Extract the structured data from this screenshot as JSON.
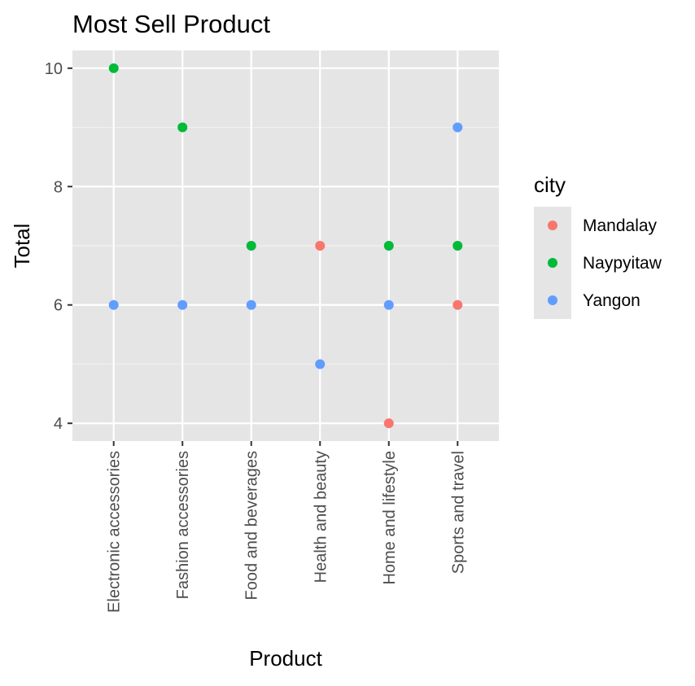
{
  "chart_data": {
    "type": "scatter",
    "title": "Most Sell Product",
    "xlabel": "Product",
    "ylabel": "Total",
    "categories": [
      "Electronic accessories",
      "Fashion accessories",
      "Food and beverages",
      "Health and beauty",
      "Home and lifestyle",
      "Sports and travel"
    ],
    "ylim": [
      3.7,
      10.3
    ],
    "yticks": [
      4,
      6,
      8,
      10
    ],
    "y_minor_ticks": [
      5,
      7,
      9
    ],
    "grid": true,
    "legend": {
      "title": "city",
      "position": "right"
    },
    "series": [
      {
        "name": "Mandalay",
        "color": "#F8766D",
        "points": [
          {
            "x": "Health and beauty",
            "y": 7
          },
          {
            "x": "Home and lifestyle",
            "y": 4
          },
          {
            "x": "Sports and travel",
            "y": 6
          }
        ]
      },
      {
        "name": "Naypyitaw",
        "color": "#00BA38",
        "points": [
          {
            "x": "Electronic accessories",
            "y": 10
          },
          {
            "x": "Fashion accessories",
            "y": 9
          },
          {
            "x": "Food and beverages",
            "y": 7
          },
          {
            "x": "Home and lifestyle",
            "y": 7
          },
          {
            "x": "Sports and travel",
            "y": 7
          }
        ]
      },
      {
        "name": "Yangon",
        "color": "#619CFF",
        "points": [
          {
            "x": "Electronic accessories",
            "y": 6
          },
          {
            "x": "Fashion accessories",
            "y": 6
          },
          {
            "x": "Food and beverages",
            "y": 6
          },
          {
            "x": "Health and beauty",
            "y": 5
          },
          {
            "x": "Home and lifestyle",
            "y": 6
          },
          {
            "x": "Sports and travel",
            "y": 9
          }
        ]
      }
    ]
  }
}
